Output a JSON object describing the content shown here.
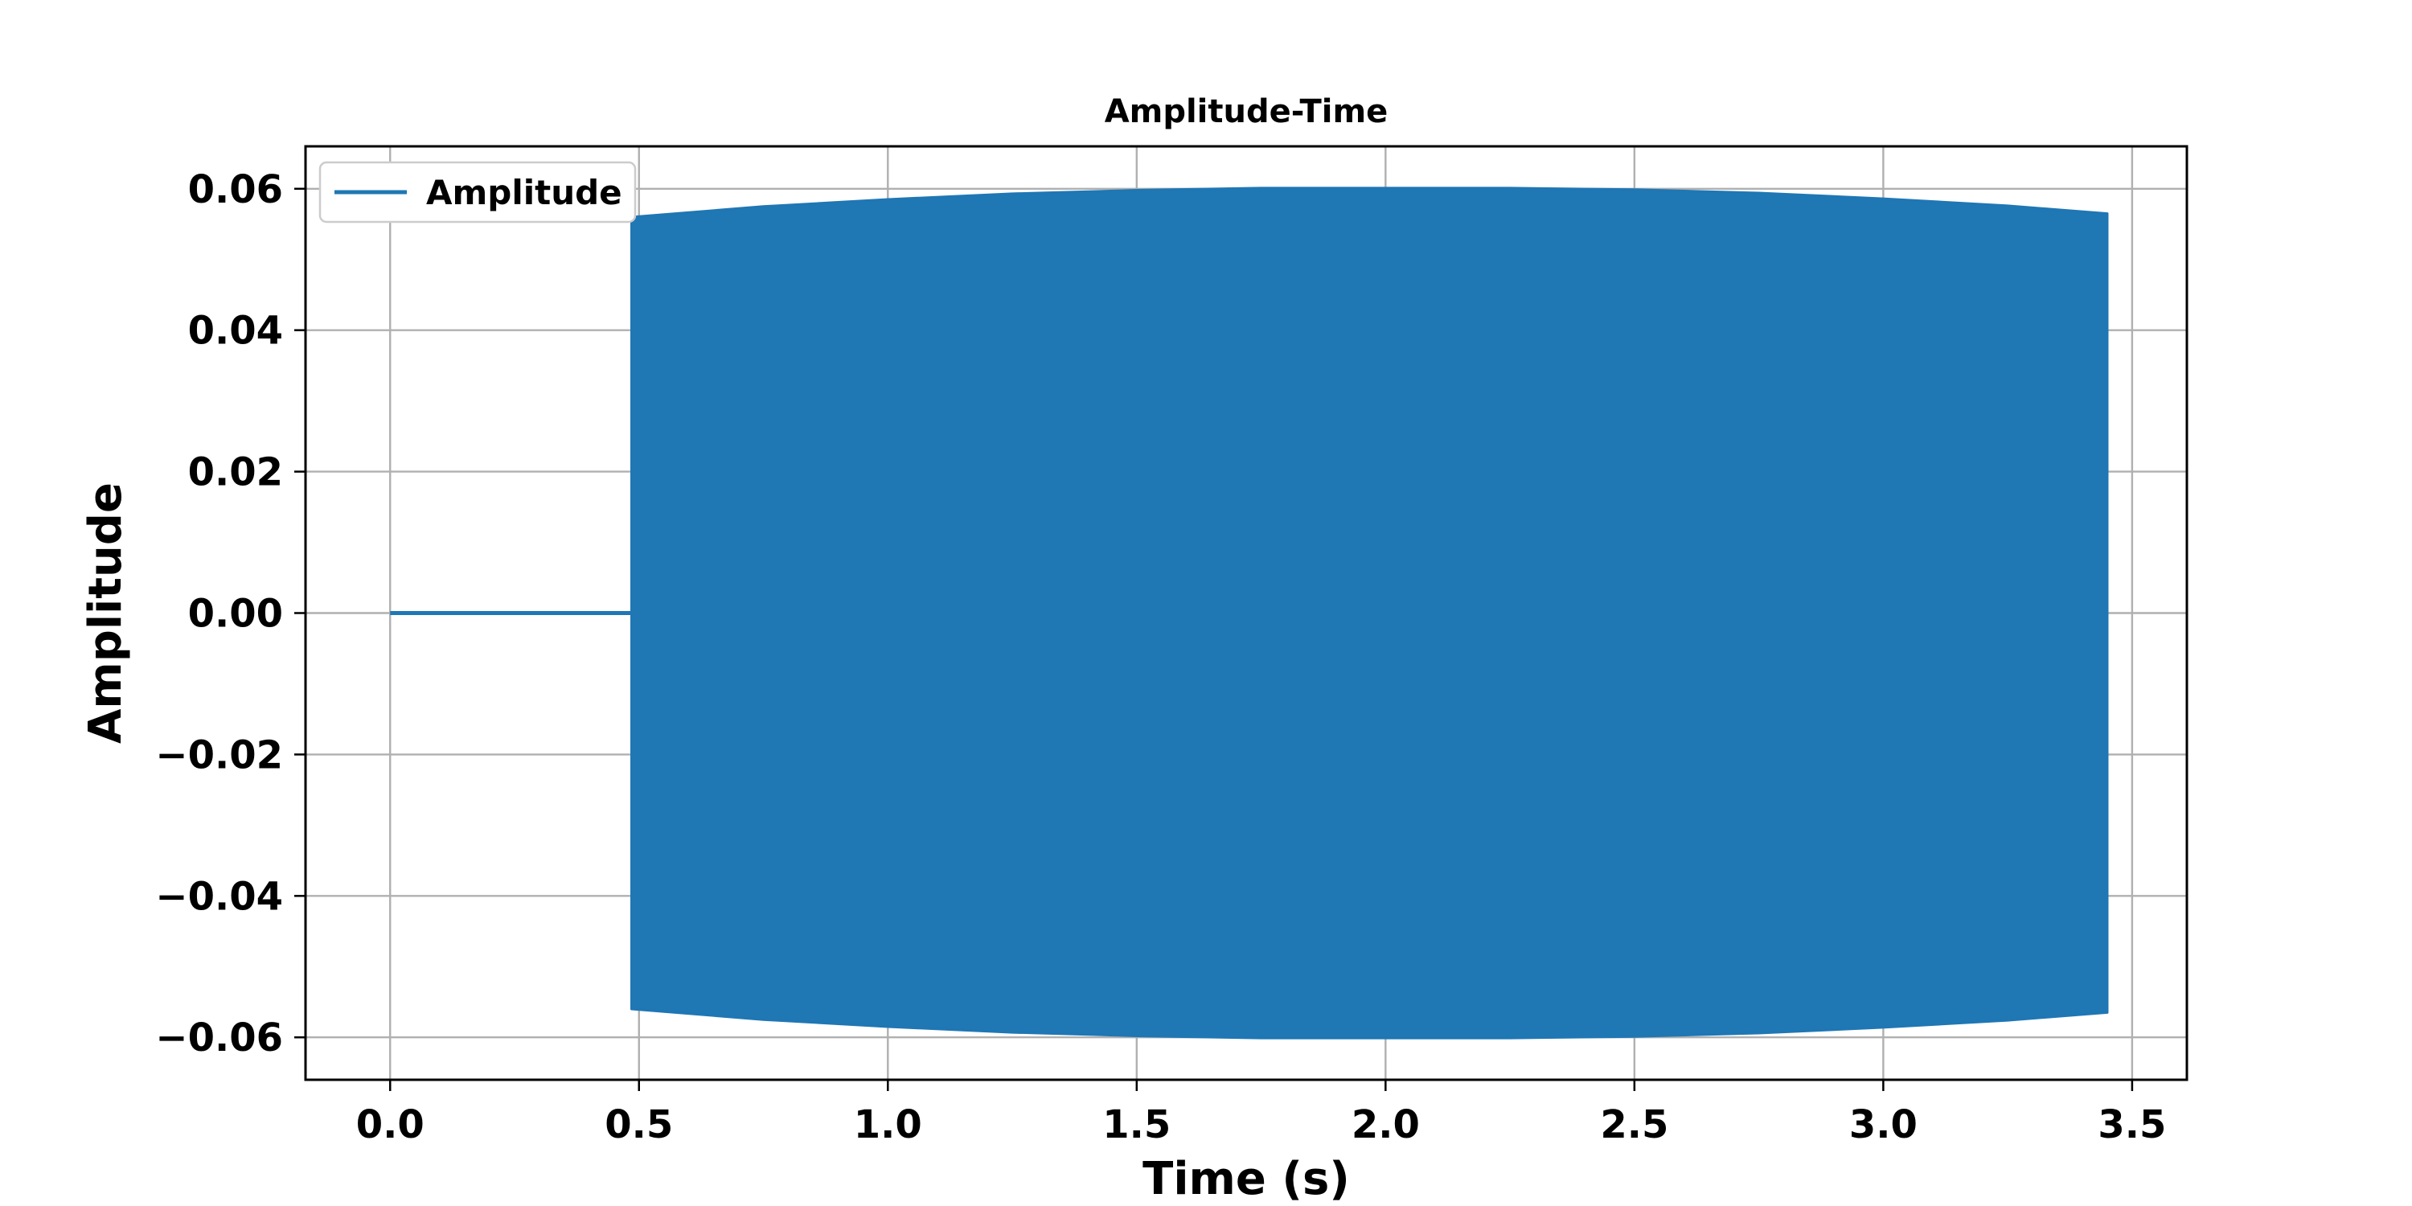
{
  "chart_data": {
    "type": "line",
    "title": "Amplitude-Time",
    "xlabel": "Time (s)",
    "ylabel": "Amplitude",
    "xlim": [
      -0.17,
      3.61
    ],
    "ylim": [
      -0.066,
      0.066
    ],
    "xticks": [
      0.0,
      0.5,
      1.0,
      1.5,
      2.0,
      2.5,
      3.0,
      3.5
    ],
    "xtick_labels": [
      "0.0",
      "0.5",
      "1.0",
      "1.5",
      "2.0",
      "2.5",
      "3.0",
      "3.5"
    ],
    "yticks": [
      0.06,
      0.04,
      0.02,
      0.0,
      -0.02,
      -0.04,
      -0.06
    ],
    "ytick_labels": [
      "0.06",
      "0.04",
      "0.02",
      "0.00",
      "−0.02",
      "−0.04",
      "−0.06"
    ],
    "grid": true,
    "legend_placement": "upper-left",
    "series": [
      {
        "name": "Amplitude",
        "color": "#1f77b4",
        "silence": {
          "x": [
            0.0,
            0.485
          ],
          "y": 0.0
        },
        "envelope": {
          "x": [
            0.485,
            0.75,
            1.0,
            1.25,
            1.5,
            1.75,
            2.0,
            2.25,
            2.5,
            2.75,
            3.0,
            3.25,
            3.45
          ],
          "max": [
            0.056,
            0.0575,
            0.0585,
            0.0593,
            0.0598,
            0.0601,
            0.0601,
            0.0601,
            0.0599,
            0.0594,
            0.0586,
            0.0576,
            0.0565
          ],
          "min": [
            -0.056,
            -0.0575,
            -0.0585,
            -0.0593,
            -0.0598,
            -0.0601,
            -0.0601,
            -0.0601,
            -0.0599,
            -0.0594,
            -0.0586,
            -0.0576,
            -0.0565
          ]
        }
      }
    ]
  }
}
